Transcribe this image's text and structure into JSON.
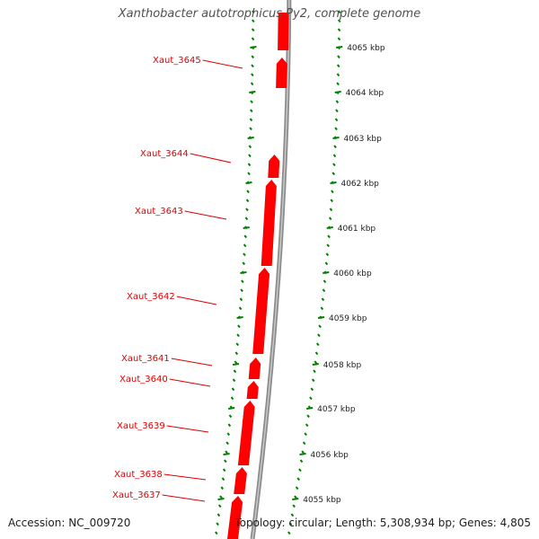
{
  "title": "Xanthobacter autotrophicus Py2, complete genome",
  "footer": {
    "accession": "Accession: NC_009720",
    "summary": "Topology: circular; Length: 5,308,934 bp; Genes: 4,805"
  },
  "colors": {
    "gene": "#ff0000",
    "gene_label": "#dd0000",
    "backbone": "#8c8c8c",
    "ticks": "#008000"
  },
  "tick_labels": [
    {
      "kbp": 4065,
      "label": "4065 kbp"
    },
    {
      "kbp": 4064,
      "label": "4064 kbp"
    },
    {
      "kbp": 4063,
      "label": "4063 kbp"
    },
    {
      "kbp": 4062,
      "label": "4062 kbp"
    },
    {
      "kbp": 4061,
      "label": "4061 kbp"
    },
    {
      "kbp": 4060,
      "label": "4060 kbp"
    },
    {
      "kbp": 4059,
      "label": "4059 kbp"
    },
    {
      "kbp": 4058,
      "label": "4058 kbp"
    },
    {
      "kbp": 4057,
      "label": "4057 kbp"
    },
    {
      "kbp": 4056,
      "label": "4056 kbp"
    },
    {
      "kbp": 4055,
      "label": "4055 kbp"
    }
  ],
  "genes": [
    {
      "name": "Xaut_3645"
    },
    {
      "name": "Xaut_3644"
    },
    {
      "name": "Xaut_3643"
    },
    {
      "name": "Xaut_3642"
    },
    {
      "name": "Xaut_3641"
    },
    {
      "name": "Xaut_3640"
    },
    {
      "name": "Xaut_3639"
    },
    {
      "name": "Xaut_3638"
    },
    {
      "name": "Xaut_3637"
    }
  ]
}
